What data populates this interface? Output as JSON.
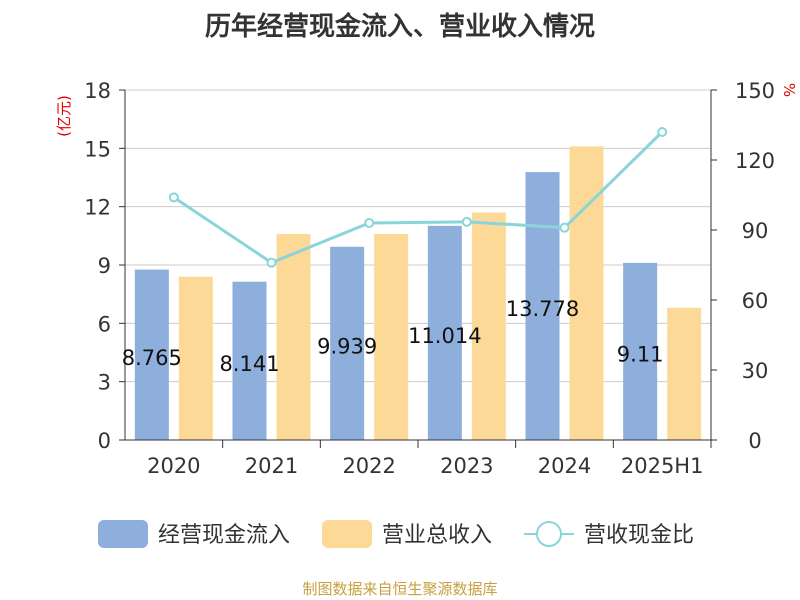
{
  "chart_data": {
    "type": "bar",
    "title": "历年经营现金流入、营业收入情况",
    "categories": [
      "2020",
      "2021",
      "2022",
      "2023",
      "2024",
      "2025H1"
    ],
    "series": [
      {
        "name": "经营现金流入",
        "type": "bar",
        "axis": "left",
        "color": "#8eaedc",
        "values": [
          8.765,
          8.141,
          9.939,
          11.014,
          13.778,
          9.11
        ],
        "data_labels": [
          "8.765",
          "8.141",
          "9.939",
          "11.014",
          "13.778",
          "9.11"
        ]
      },
      {
        "name": "营业总收入",
        "type": "bar",
        "axis": "left",
        "color": "#fdd998",
        "values": [
          8.4,
          10.6,
          10.6,
          11.7,
          15.1,
          6.8
        ]
      },
      {
        "name": "营收现金比",
        "type": "line",
        "axis": "right",
        "color": "#89d5d9",
        "values": [
          104,
          76,
          93,
          93.5,
          91,
          132
        ]
      }
    ],
    "y_left": {
      "label": "(亿元)",
      "ylim": [
        0,
        18
      ],
      "ticks": [
        "0",
        "3",
        "6",
        "9",
        "12",
        "15",
        "18"
      ]
    },
    "y_right": {
      "label": "%",
      "ylim": [
        0,
        150
      ],
      "ticks": [
        "0",
        "30",
        "60",
        "90",
        "120",
        "150"
      ]
    },
    "grid": true,
    "legend_position": "bottom"
  },
  "source": "制图数据来自恒生聚源数据库"
}
